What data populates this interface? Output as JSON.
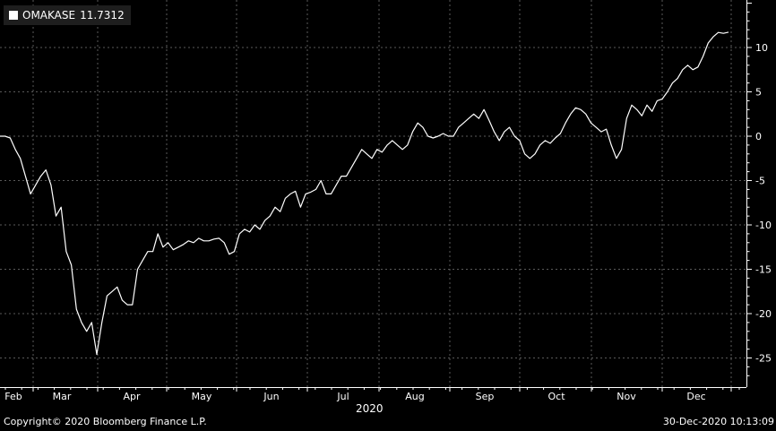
{
  "chart_data": {
    "type": "line",
    "legend": {
      "name": "OMAKASE",
      "last_value": "11.7312"
    },
    "x_axis": {
      "months": [
        "Feb",
        "Mar",
        "Apr",
        "May",
        "Jun",
        "Jul",
        "Aug",
        "Sep",
        "Oct",
        "Nov",
        "Dec"
      ],
      "year_label": "2020"
    },
    "y_axis": {
      "ticks": [
        10,
        5,
        0,
        -5,
        -10,
        -15,
        -20,
        -25
      ],
      "ylim": [
        -27.5,
        15
      ]
    },
    "grid": true,
    "series": [
      {
        "name": "OMAKASE",
        "values": [
          0,
          0,
          -0.2,
          -1.5,
          -2.5,
          -4.5,
          -6.5,
          -5.5,
          -4.5,
          -3.8,
          -5.5,
          -9,
          -8,
          -13,
          -14.5,
          -19.5,
          -21,
          -22,
          -21,
          -24.6,
          -21,
          -18,
          -17.5,
          -17,
          -18.5,
          -19,
          -19,
          -15,
          -14,
          -13,
          -13,
          -11,
          -12.5,
          -12,
          -12.8,
          -12.5,
          -12.2,
          -11.8,
          -12,
          -11.5,
          -11.8,
          -11.8,
          -11.6,
          -11.5,
          -12,
          -13.3,
          -13,
          -11,
          -10.5,
          -10.8,
          -10,
          -10.5,
          -9.5,
          -9,
          -8,
          -8.5,
          -7,
          -6.5,
          -6.2,
          -8,
          -6.5,
          -6.3,
          -6,
          -5,
          -6.5,
          -6.5,
          -5.5,
          -4.5,
          -4.5,
          -3.5,
          -2.5,
          -1.5,
          -2,
          -2.5,
          -1.5,
          -1.8,
          -1,
          -0.5,
          -1,
          -1.5,
          -1,
          0.5,
          1.5,
          1,
          0,
          -0.2,
          0,
          0.3,
          0,
          0,
          1,
          1.5,
          2,
          2.5,
          2,
          3,
          1.8,
          0.5,
          -0.5,
          0.5,
          1,
          0,
          -0.5,
          -2,
          -2.5,
          -2,
          -1,
          -0.5,
          -0.8,
          -0.2,
          0.3,
          1.5,
          2.5,
          3.2,
          3,
          2.5,
          1.5,
          1,
          0.5,
          0.8,
          -1,
          -2.5,
          -1.5,
          2,
          3.5,
          3,
          2.3,
          3.5,
          2.8,
          4,
          4.2,
          5,
          6,
          6.5,
          7.5,
          8,
          7.5,
          7.8,
          9,
          10.5,
          11.2,
          11.7,
          11.6,
          11.73
        ]
      }
    ]
  },
  "footer": {
    "copyright": "Copyright© 2020 Bloomberg Finance L.P.",
    "timestamp": "30-Dec-2020 10:13:09"
  }
}
